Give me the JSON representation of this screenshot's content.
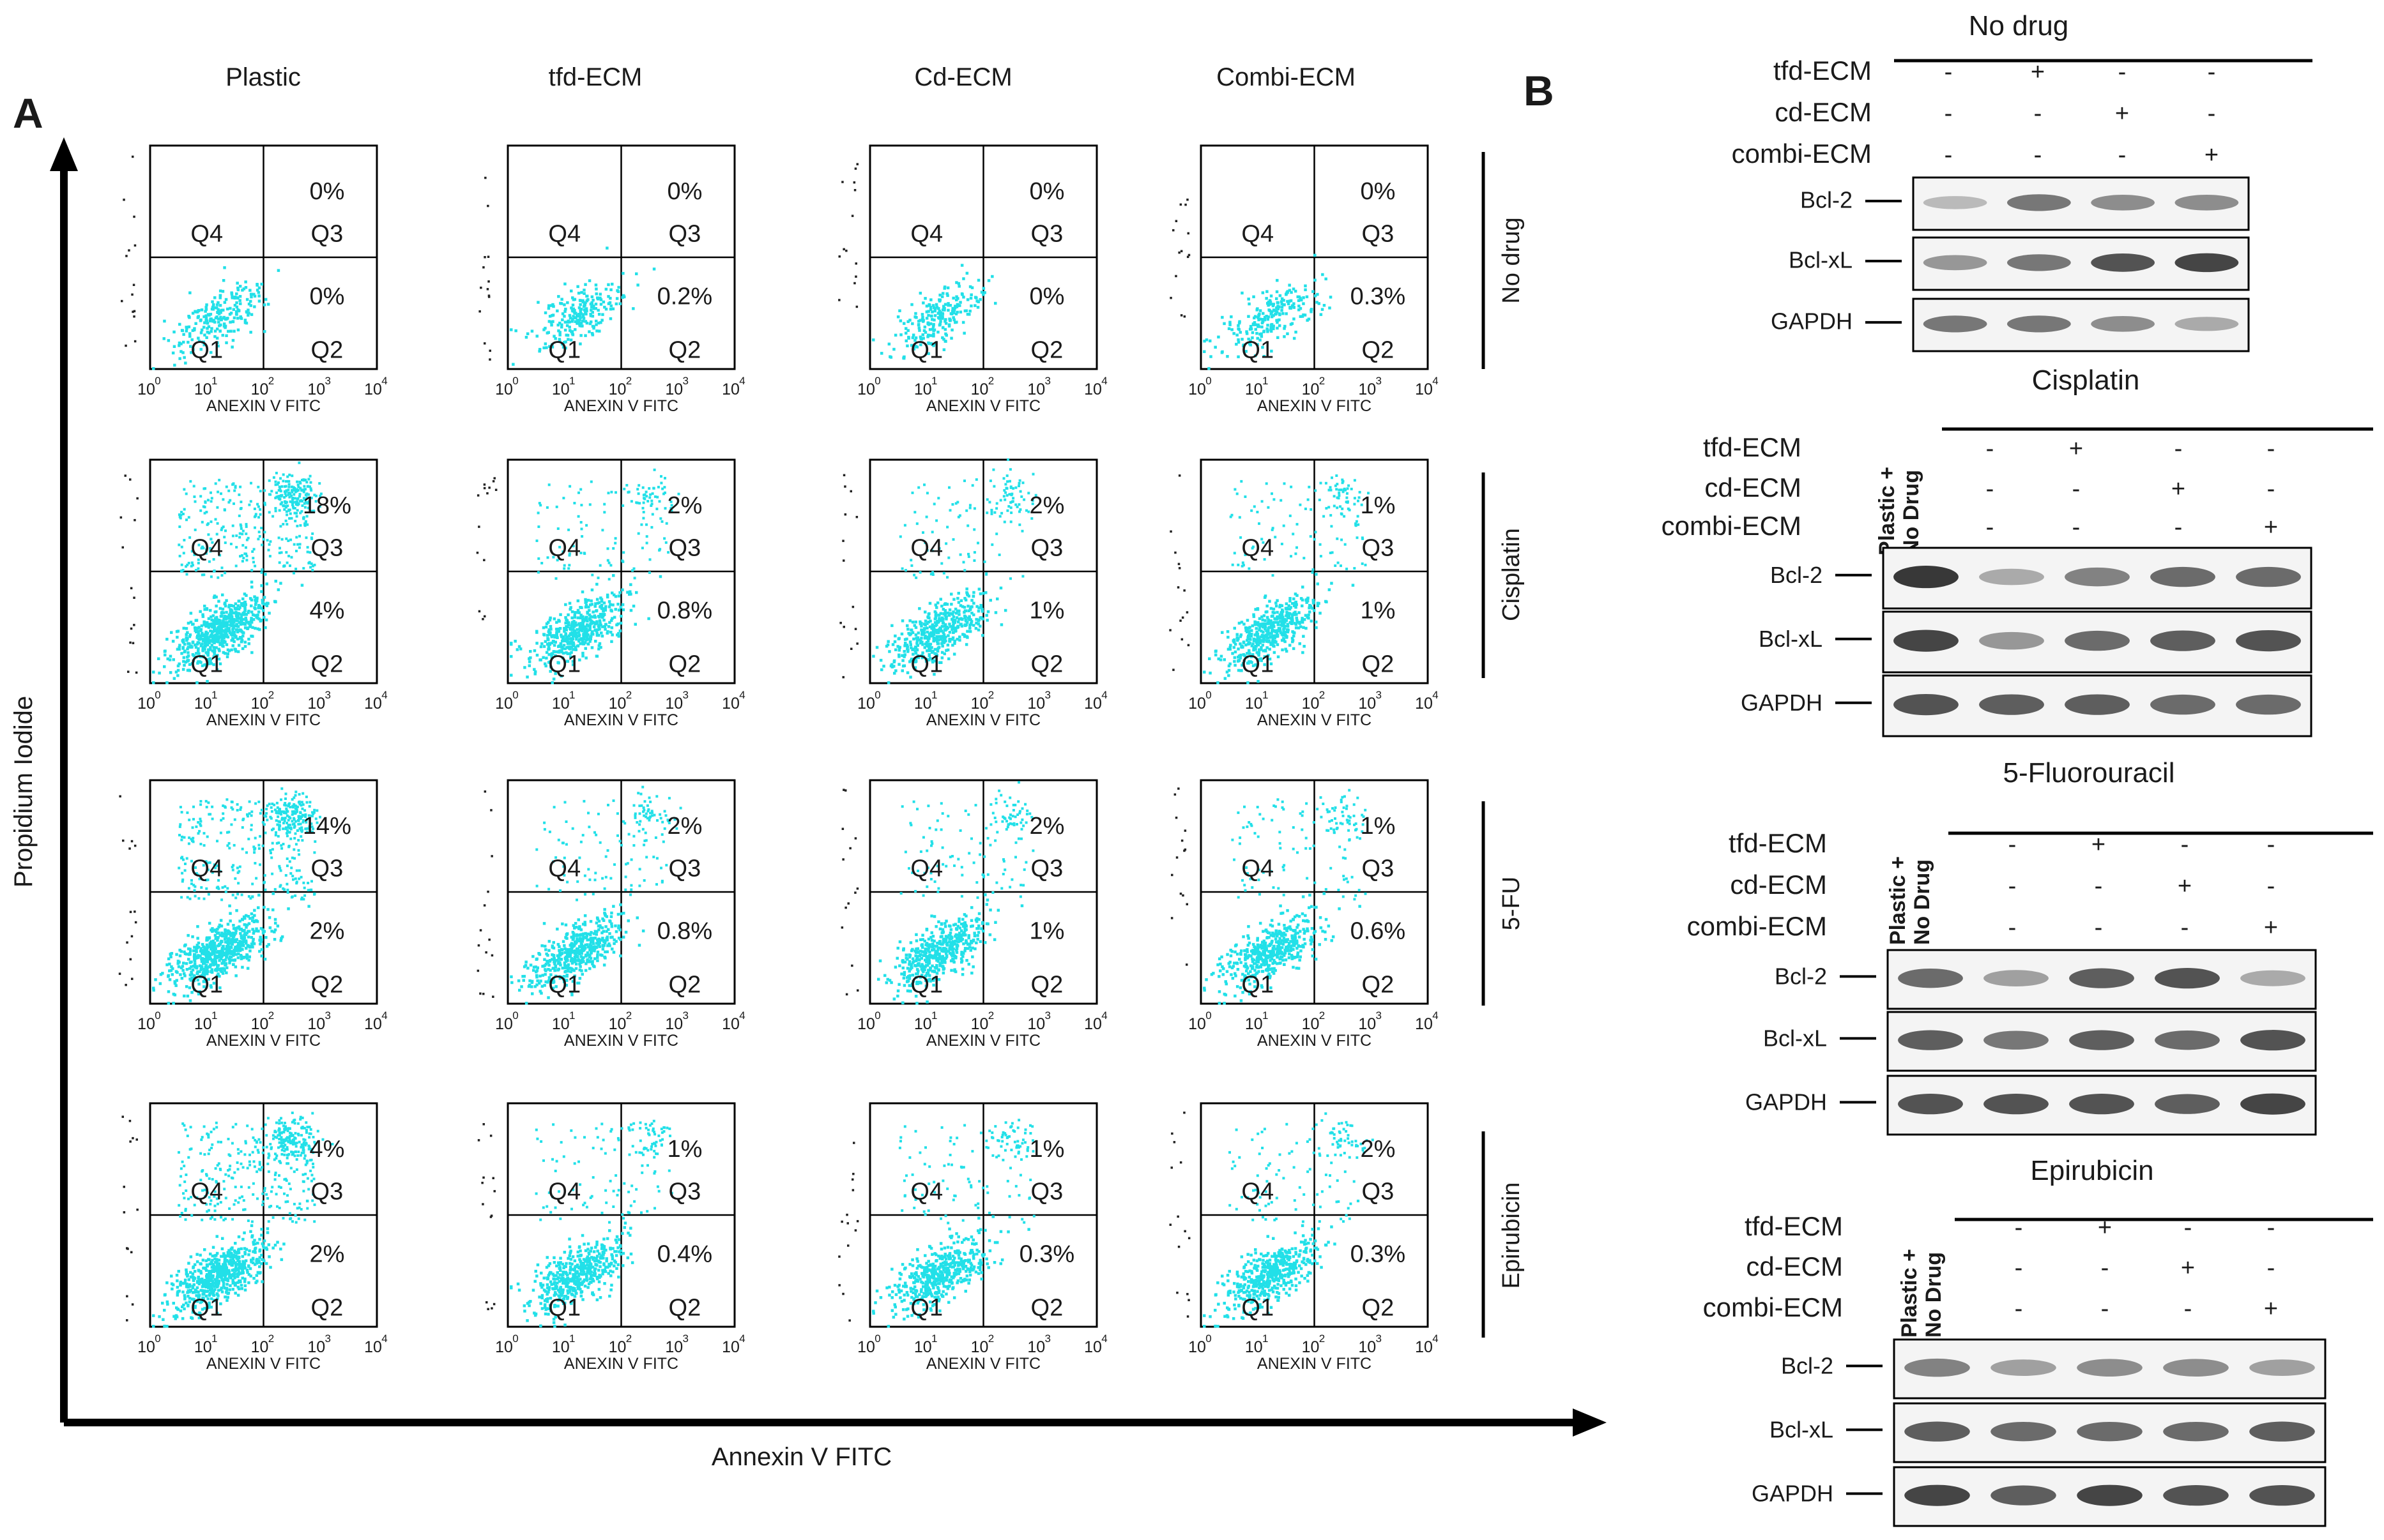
{
  "panels": {
    "a_label": "A",
    "b_label": "B"
  },
  "flow": {
    "columns": [
      "Plastic",
      "tfd-ECM",
      "Cd-ECM",
      "Combi-ECM"
    ],
    "rows": [
      "No drug",
      "Cisplatin",
      "5-FU",
      "Epirubicin"
    ],
    "y_axis_label": "Propidium Iodide",
    "x_axis_label": "Annexin V FITC",
    "plot_xlabel": "ANEXIN V FITC",
    "quadrants": [
      "Q1",
      "Q2",
      "Q3",
      "Q4"
    ],
    "tick_base": "10",
    "tick_exponents": [
      "0",
      "1",
      "2",
      "3",
      "4"
    ],
    "dot_color": "#22e0e8",
    "values": [
      [
        {
          "q3": "0%",
          "q2": "0%"
        },
        {
          "q3": "0%",
          "q2": "0.2%"
        },
        {
          "q3": "0%",
          "q2": "0%"
        },
        {
          "q3": "0%",
          "q2": "0.3%"
        }
      ],
      [
        {
          "q3": "18%",
          "q2": "4%"
        },
        {
          "q3": "2%",
          "q2": "0.8%"
        },
        {
          "q3": "2%",
          "q2": "1%"
        },
        {
          "q3": "1%",
          "q2": "1%"
        }
      ],
      [
        {
          "q3": "14%",
          "q2": "2%"
        },
        {
          "q3": "2%",
          "q2": "0.8%"
        },
        {
          "q3": "2%",
          "q2": "1%"
        },
        {
          "q3": "1%",
          "q2": "0.6%"
        }
      ],
      [
        {
          "q3": "4%",
          "q2": "2%"
        },
        {
          "q3": "1%",
          "q2": "0.4%"
        },
        {
          "q3": "1%",
          "q2": "0.3%"
        },
        {
          "q3": "2%",
          "q2": "0.3%"
        }
      ]
    ]
  },
  "western": {
    "blocks": [
      {
        "title": "No drug",
        "has_plastic_lane": false,
        "conditions": [
          {
            "label": "tfd-ECM",
            "signs": [
              "-",
              "+",
              "-",
              "-"
            ]
          },
          {
            "label": "cd-ECM",
            "signs": [
              "-",
              "-",
              "+",
              "-"
            ]
          },
          {
            "label": "combi-ECM",
            "signs": [
              "-",
              "-",
              "-",
              "+"
            ]
          }
        ],
        "bands": [
          {
            "label": "Bcl-2",
            "intensity": [
              0.35,
              0.7,
              0.6,
              0.6
            ]
          },
          {
            "label": "Bcl-xL",
            "intensity": [
              0.55,
              0.7,
              0.85,
              0.9
            ]
          },
          {
            "label": "GAPDH",
            "intensity": [
              0.7,
              0.7,
              0.6,
              0.45
            ]
          }
        ]
      },
      {
        "title": "Cisplatin",
        "has_plastic_lane": true,
        "plastic_label": [
          "Plastic +",
          "No Drug"
        ],
        "conditions": [
          {
            "label": "tfd-ECM",
            "signs": [
              "-",
              "+",
              "-",
              "-"
            ]
          },
          {
            "label": "cd-ECM",
            "signs": [
              "-",
              "-",
              "+",
              "-"
            ]
          },
          {
            "label": "combi-ECM",
            "signs": [
              "-",
              "-",
              "-",
              "+"
            ]
          }
        ],
        "bands": [
          {
            "label": "Bcl-2",
            "intensity": [
              0.95,
              0.45,
              0.65,
              0.75,
              0.75
            ]
          },
          {
            "label": "Bcl-xL",
            "intensity": [
              0.9,
              0.55,
              0.75,
              0.8,
              0.85
            ]
          },
          {
            "label": "GAPDH",
            "intensity": [
              0.85,
              0.8,
              0.8,
              0.75,
              0.75
            ]
          }
        ]
      },
      {
        "title": "5-Fluorouracil",
        "has_plastic_lane": true,
        "plastic_label": [
          "Plastic +",
          "No Drug"
        ],
        "conditions": [
          {
            "label": "tfd-ECM",
            "signs": [
              "-",
              "+",
              "-",
              "-"
            ]
          },
          {
            "label": "cd-ECM",
            "signs": [
              "-",
              "-",
              "+",
              "-"
            ]
          },
          {
            "label": "combi-ECM",
            "signs": [
              "-",
              "-",
              "-",
              "+"
            ]
          }
        ],
        "bands": [
          {
            "label": "Bcl-2",
            "intensity": [
              0.75,
              0.5,
              0.8,
              0.85,
              0.45
            ]
          },
          {
            "label": "Bcl-xL",
            "intensity": [
              0.8,
              0.7,
              0.8,
              0.75,
              0.85
            ]
          },
          {
            "label": "GAPDH",
            "intensity": [
              0.85,
              0.85,
              0.85,
              0.8,
              0.9
            ]
          }
        ]
      },
      {
        "title": "Epirubicin",
        "has_plastic_lane": true,
        "plastic_label": [
          "Plastic +",
          "No Drug"
        ],
        "conditions": [
          {
            "label": "tfd-ECM",
            "signs": [
              "-",
              "+",
              "-",
              "-"
            ]
          },
          {
            "label": "cd-ECM",
            "signs": [
              "-",
              "-",
              "+",
              "-"
            ]
          },
          {
            "label": "combi-ECM",
            "signs": [
              "-",
              "-",
              "-",
              "+"
            ]
          }
        ],
        "bands": [
          {
            "label": "Bcl-2",
            "intensity": [
              0.65,
              0.5,
              0.6,
              0.6,
              0.5
            ]
          },
          {
            "label": "Bcl-xL",
            "intensity": [
              0.8,
              0.75,
              0.75,
              0.75,
              0.8
            ]
          },
          {
            "label": "GAPDH",
            "intensity": [
              0.9,
              0.8,
              0.9,
              0.85,
              0.85
            ]
          }
        ]
      }
    ]
  }
}
